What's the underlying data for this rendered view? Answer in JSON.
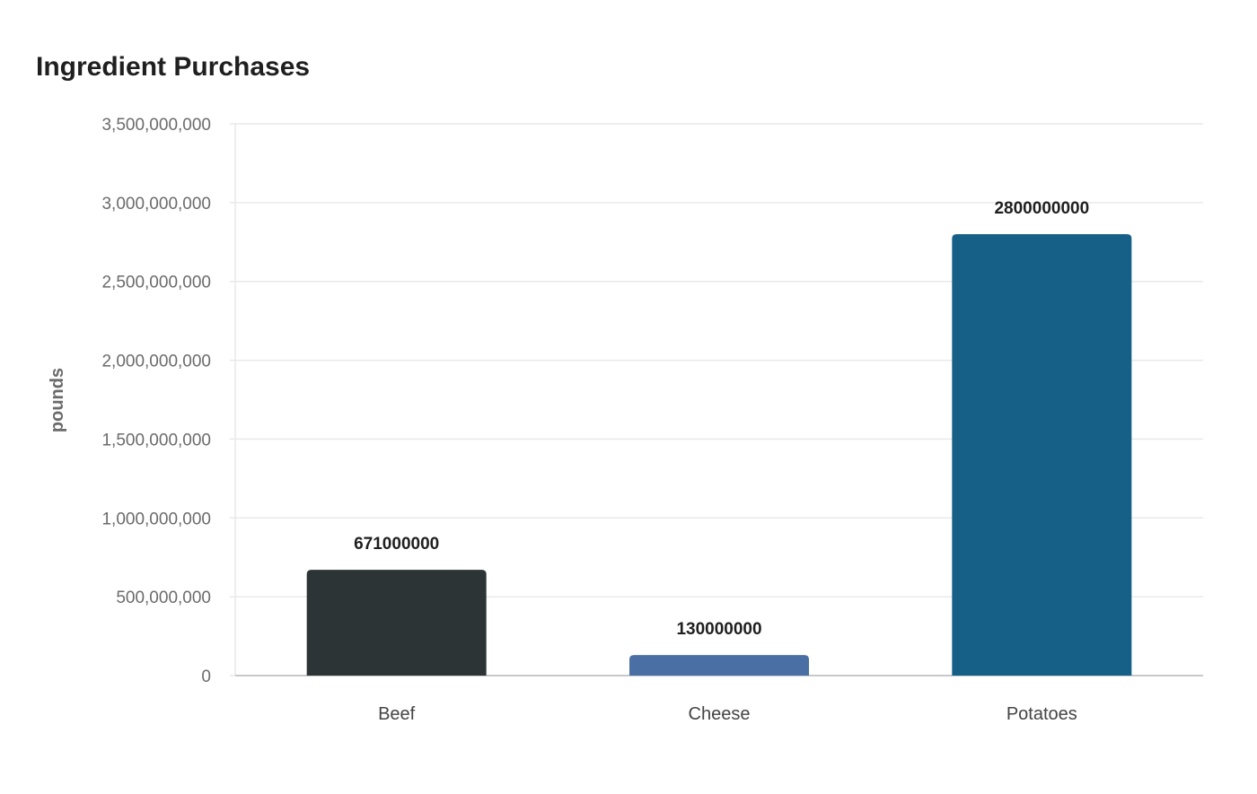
{
  "chart_data": {
    "type": "bar",
    "title": "Ingredient Purchases",
    "xlabel": "",
    "ylabel": "pounds",
    "categories": [
      "Beef",
      "Cheese",
      "Potatoes"
    ],
    "values": [
      671000000,
      130000000,
      2800000000
    ],
    "value_labels": [
      "671000000",
      "130000000",
      "2800000000"
    ],
    "bar_colors": [
      "#2d3436",
      "#4a6fa5",
      "#166088"
    ],
    "ylim": [
      0,
      3500000000
    ],
    "yticks": [
      0,
      500000000,
      1000000000,
      1500000000,
      2000000000,
      2500000000,
      3000000000,
      3500000000
    ],
    "ytick_labels": [
      "0",
      "500,000,000",
      "1,000,000,000",
      "1,500,000,000",
      "2,000,000,000",
      "2,500,000,000",
      "3,000,000,000",
      "3,500,000,000"
    ],
    "grid": true,
    "legend": "none"
  },
  "colors": {
    "grid": "#e9e9e9",
    "axis": "#c8c8c8"
  }
}
